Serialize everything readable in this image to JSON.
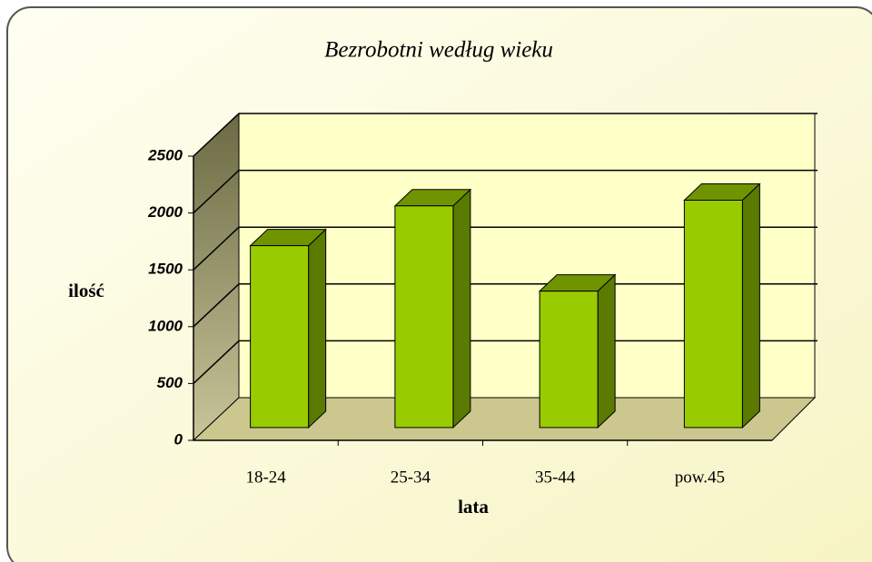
{
  "chart_data": {
    "type": "bar3d",
    "title": "Bezrobotni według wieku",
    "x_label": "lata",
    "y_label": "ilość",
    "categories": [
      "18-24",
      "25-34",
      "35-44",
      "pow.45"
    ],
    "values": [
      1600,
      1950,
      1200,
      2000
    ],
    "color": "#99cc00",
    "ylim": [
      0,
      2500
    ],
    "yticks": [
      0,
      500,
      1000,
      1500,
      2000,
      2500
    ],
    "grid": true
  }
}
